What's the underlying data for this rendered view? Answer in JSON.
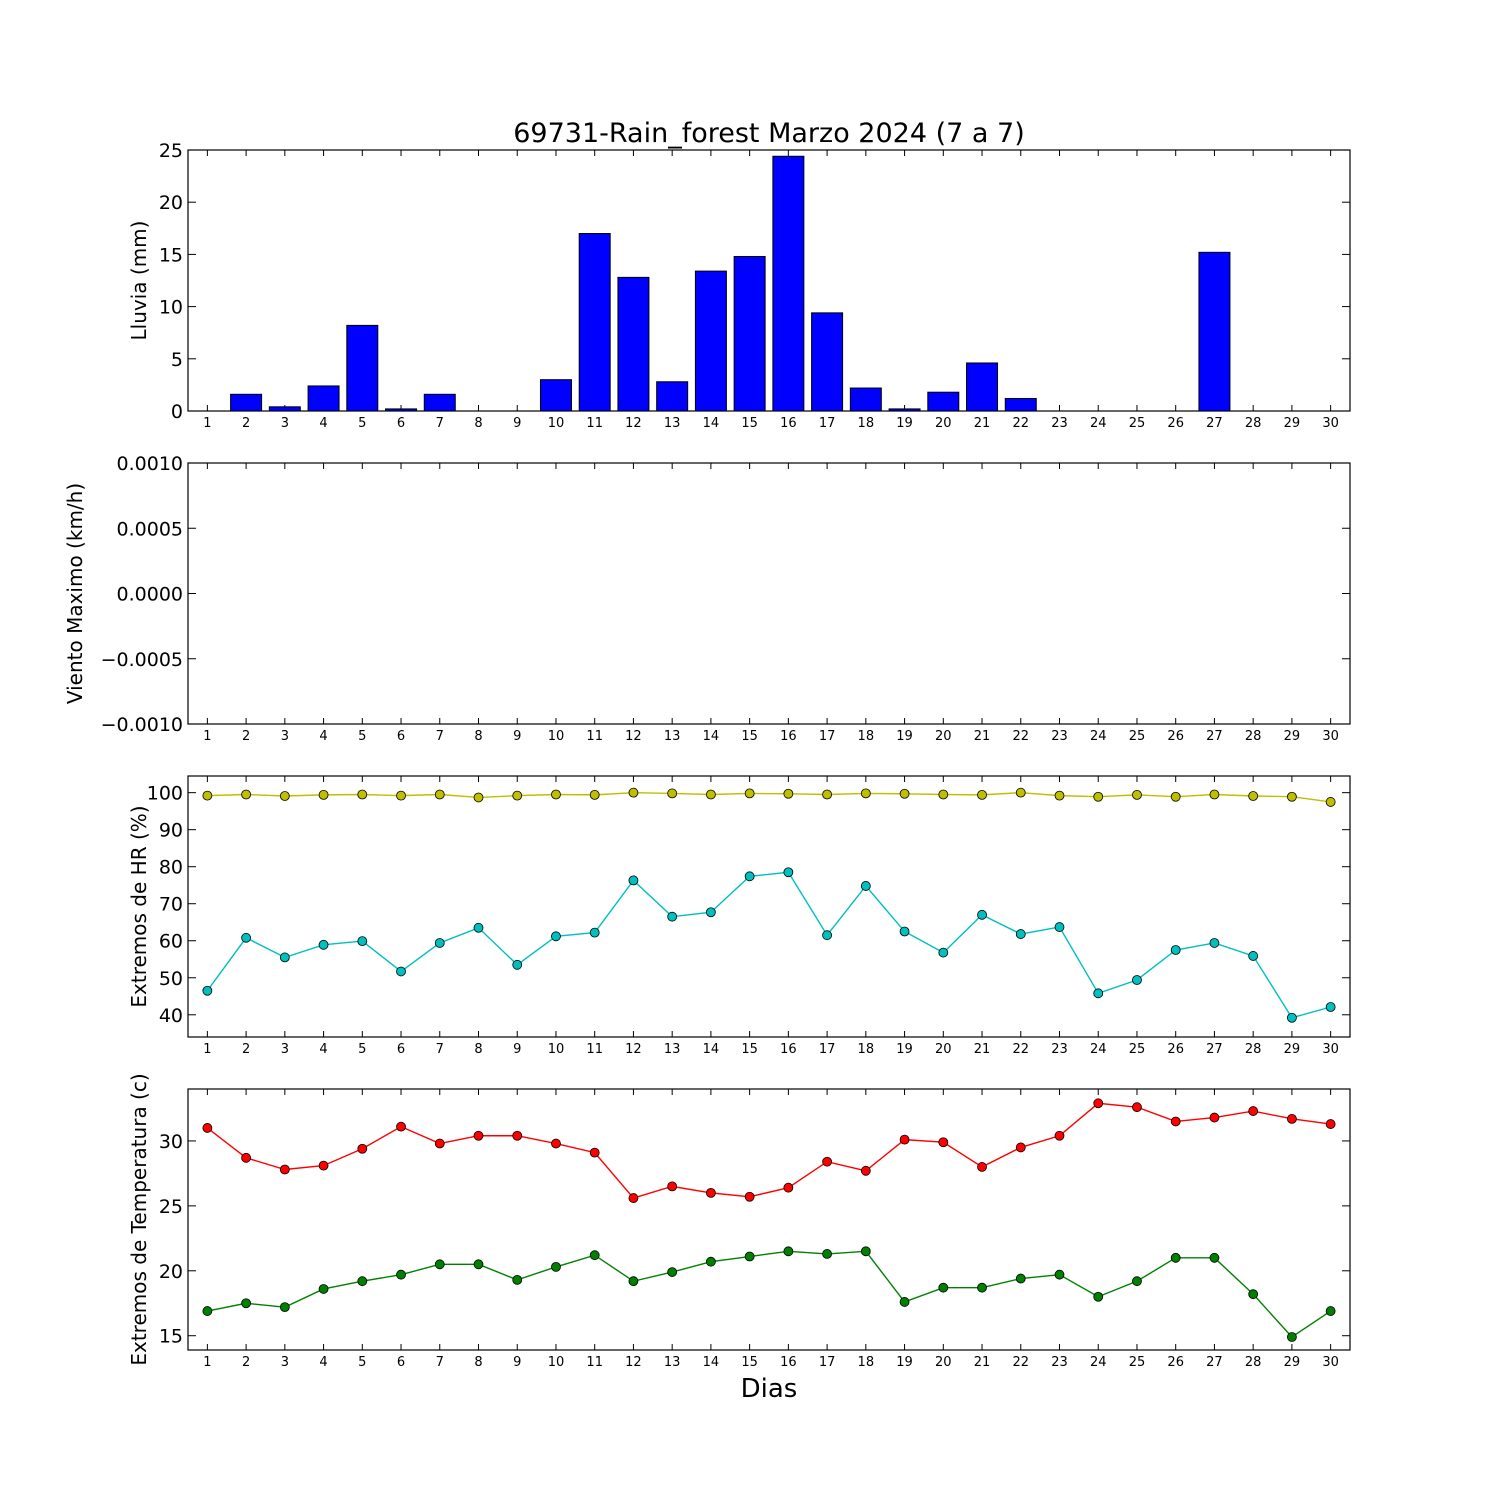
{
  "chart_data": {
    "title": "69731-Rain_forest Marzo 2024  (7 a 7)",
    "xlabel": "Dias",
    "days": [
      1,
      2,
      3,
      4,
      5,
      6,
      7,
      8,
      9,
      10,
      11,
      12,
      13,
      14,
      15,
      16,
      17,
      18,
      19,
      20,
      21,
      22,
      23,
      24,
      25,
      26,
      27,
      28,
      29,
      30
    ],
    "colors": {
      "rain": "#0000ff",
      "hr_max": "#bfbf00",
      "hr_min": "#00bfbf",
      "temp_max": "#ff0000",
      "temp_min": "#008000"
    },
    "panels": [
      {
        "type": "bar",
        "ylabel": "Lluvia (mm)",
        "ylim": [
          0,
          25
        ],
        "yticks": [
          "0",
          "5",
          "10",
          "15",
          "20",
          "25"
        ],
        "series": [
          {
            "values": [
              0,
              1.6,
              0.4,
              2.4,
              8.2,
              0.2,
              1.6,
              0,
              0,
              3.0,
              17.0,
              12.8,
              2.8,
              13.4,
              14.8,
              24.4,
              9.4,
              2.2,
              0.2,
              1.8,
              4.6,
              1.2,
              0,
              0,
              0,
              0,
              15.2,
              0,
              0,
              0
            ]
          }
        ]
      },
      {
        "type": "line",
        "ylabel": "Viento Maximo (km/h)",
        "ylim": [
          -0.001,
          0.001
        ],
        "yticks": [
          "−0.0010",
          "−0.0005",
          "0.0000",
          "0.0005",
          "0.0010"
        ],
        "series": []
      },
      {
        "type": "line",
        "ylabel": "Extremos de HR (%)",
        "ylim": [
          34,
          104.5
        ],
        "yticks": [
          "40",
          "50",
          "60",
          "70",
          "80",
          "90",
          "100"
        ],
        "series": [
          {
            "values": [
              99.2,
              99.5,
              99.1,
              99.4,
              99.5,
              99.2,
              99.5,
              98.7,
              99.2,
              99.5,
              99.4,
              100.0,
              99.8,
              99.5,
              99.8,
              99.7,
              99.5,
              99.8,
              99.7,
              99.5,
              99.4,
              100.0,
              99.2,
              98.9,
              99.4,
              98.9,
              99.5,
              99.1,
              98.9,
              97.5
            ]
          },
          {
            "values": [
              46.5,
              60.8,
              55.5,
              58.9,
              59.9,
              51.7,
              59.4,
              63.5,
              53.5,
              61.2,
              62.2,
              76.3,
              66.5,
              67.7,
              77.4,
              78.5,
              61.5,
              74.8,
              62.5,
              56.8,
              67.0,
              61.8,
              63.7,
              45.8,
              49.4,
              57.5,
              59.4,
              55.9,
              39.2,
              42.1
            ]
          }
        ]
      },
      {
        "type": "line",
        "ylabel": "Extremos de Temperatura (c)",
        "ylim": [
          13.9,
          34.0
        ],
        "yticks": [
          "15",
          "20",
          "25",
          "30"
        ],
        "series": [
          {
            "values": [
              31.0,
              28.7,
              27.8,
              28.1,
              29.4,
              31.1,
              29.8,
              30.4,
              30.4,
              29.8,
              29.1,
              25.6,
              26.5,
              26.0,
              25.7,
              26.4,
              28.4,
              27.7,
              30.1,
              29.9,
              28.0,
              29.5,
              30.4,
              32.9,
              32.6,
              31.5,
              31.8,
              32.3,
              31.7,
              31.3
            ]
          },
          {
            "values": [
              16.9,
              17.5,
              17.2,
              18.6,
              19.2,
              19.7,
              20.5,
              20.5,
              19.3,
              20.3,
              21.2,
              19.2,
              19.9,
              20.7,
              21.1,
              21.5,
              21.3,
              21.5,
              17.6,
              18.7,
              18.7,
              19.4,
              19.7,
              18.0,
              19.2,
              21.0,
              21.0,
              18.2,
              14.9,
              16.9
            ]
          }
        ]
      }
    ]
  }
}
